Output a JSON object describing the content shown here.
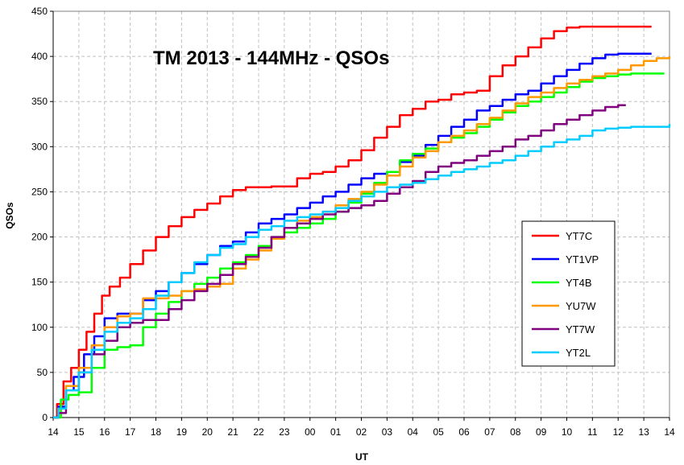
{
  "chart_data": {
    "type": "line",
    "title": "TM 2013 - 144MHz - QSOs",
    "xlabel": "UT",
    "ylabel": "QSOs",
    "ylim": [
      0,
      450
    ],
    "yticks": [
      "0",
      "50",
      "100",
      "150",
      "200",
      "250",
      "300",
      "350",
      "400",
      "450"
    ],
    "xlim": [
      0,
      24
    ],
    "xticks": [
      "14",
      "15",
      "16",
      "17",
      "18",
      "19",
      "20",
      "21",
      "22",
      "23",
      "00",
      "01",
      "02",
      "03",
      "04",
      "05",
      "06",
      "07",
      "08",
      "09",
      "10",
      "11",
      "12",
      "13",
      "14"
    ],
    "x_unit_note": "",
    "grid": true,
    "legend_position": "right",
    "series": [
      {
        "name": "YT7C",
        "color": "#ff0000",
        "x": [
          0,
          0.15,
          0.4,
          0.7,
          1.0,
          1.3,
          1.6,
          1.9,
          2.2,
          2.6,
          3.0,
          3.5,
          4.0,
          4.5,
          5.0,
          5.5,
          6.0,
          6.5,
          7.0,
          7.5,
          8.0,
          8.5,
          9.0,
          9.5,
          10.0,
          10.5,
          11.0,
          11.5,
          12.0,
          12.5,
          13.0,
          13.5,
          14.0,
          14.5,
          15.0,
          15.5,
          16.0,
          16.5,
          17.0,
          17.5,
          18.0,
          18.5,
          19.0,
          19.5,
          20.0,
          20.5,
          21.0,
          21.5,
          22.0,
          22.5,
          23.0,
          23.3
        ],
        "y": [
          0,
          15,
          40,
          55,
          75,
          95,
          115,
          135,
          145,
          155,
          170,
          185,
          200,
          212,
          222,
          230,
          237,
          245,
          252,
          255,
          255,
          256,
          256,
          265,
          270,
          272,
          278,
          285,
          296,
          310,
          322,
          335,
          342,
          350,
          352,
          358,
          360,
          362,
          378,
          390,
          400,
          410,
          420,
          428,
          432,
          433,
          433,
          433,
          433,
          433,
          433,
          433
        ]
      },
      {
        "name": "YT1VP",
        "color": "#0000ff",
        "x": [
          0,
          0.2,
          0.5,
          0.8,
          1.2,
          1.6,
          2.0,
          2.5,
          3.0,
          3.5,
          4.0,
          4.5,
          5.0,
          5.5,
          6.0,
          6.5,
          7.0,
          7.5,
          8.0,
          8.5,
          9.0,
          9.5,
          10.0,
          10.5,
          11.0,
          11.5,
          12.0,
          12.5,
          13.0,
          13.5,
          14.0,
          14.5,
          15.0,
          15.5,
          16.0,
          16.5,
          17.0,
          17.5,
          18.0,
          18.5,
          19.0,
          19.5,
          20.0,
          20.5,
          21.0,
          21.5,
          22.0,
          22.5,
          23.0,
          23.3
        ],
        "y": [
          0,
          12,
          30,
          45,
          70,
          90,
          110,
          115,
          115,
          130,
          140,
          150,
          160,
          170,
          180,
          190,
          195,
          205,
          215,
          220,
          225,
          232,
          238,
          245,
          250,
          258,
          265,
          270,
          272,
          283,
          290,
          302,
          312,
          322,
          330,
          340,
          345,
          352,
          358,
          362,
          370,
          378,
          385,
          392,
          398,
          402,
          403,
          403,
          403,
          403
        ]
      },
      {
        "name": "YT4B",
        "color": "#00ff00",
        "x": [
          0,
          0.3,
          0.6,
          1.0,
          1.5,
          2.0,
          2.5,
          3.0,
          3.5,
          4.0,
          4.5,
          5.0,
          5.5,
          6.0,
          6.5,
          7.0,
          7.5,
          8.0,
          8.5,
          9.0,
          9.5,
          10.0,
          10.5,
          11.0,
          11.5,
          12.0,
          12.5,
          13.0,
          13.5,
          14.0,
          14.5,
          15.0,
          15.5,
          16.0,
          16.5,
          17.0,
          17.5,
          18.0,
          18.5,
          19.0,
          19.5,
          20.0,
          20.5,
          21.0,
          21.5,
          22.0,
          22.5,
          23.0,
          23.5,
          23.8
        ],
        "y": [
          0,
          20,
          25,
          28,
          55,
          75,
          78,
          80,
          100,
          115,
          128,
          140,
          148,
          155,
          165,
          172,
          180,
          190,
          200,
          205,
          210,
          215,
          220,
          228,
          238,
          248,
          260,
          272,
          285,
          292,
          298,
          305,
          310,
          315,
          322,
          330,
          338,
          345,
          350,
          355,
          360,
          366,
          372,
          376,
          378,
          380,
          381,
          381,
          381,
          381
        ]
      },
      {
        "name": "YU7W",
        "color": "#ff9900",
        "x": [
          0,
          0.2,
          0.5,
          1.0,
          1.5,
          2.0,
          2.5,
          3.0,
          3.5,
          4.0,
          4.5,
          5.0,
          5.5,
          6.0,
          6.5,
          7.0,
          7.5,
          8.0,
          8.5,
          9.0,
          9.5,
          10.0,
          10.5,
          11.0,
          11.5,
          12.0,
          12.5,
          13.0,
          13.5,
          14.0,
          14.5,
          15.0,
          15.5,
          16.0,
          16.5,
          17.0,
          17.5,
          18.0,
          18.5,
          19.0,
          19.5,
          20.0,
          20.5,
          21.0,
          21.5,
          22.0,
          22.5,
          23.0,
          23.5,
          24.0
        ],
        "y": [
          0,
          10,
          35,
          55,
          80,
          100,
          112,
          115,
          132,
          132,
          135,
          140,
          142,
          145,
          148,
          165,
          175,
          185,
          198,
          210,
          218,
          222,
          228,
          235,
          242,
          250,
          258,
          268,
          278,
          288,
          295,
          305,
          312,
          318,
          325,
          332,
          340,
          348,
          355,
          360,
          365,
          370,
          374,
          378,
          381,
          385,
          390,
          395,
          398,
          400
        ]
      },
      {
        "name": "YT7W",
        "color": "#800080",
        "x": [
          0,
          0.2,
          0.5,
          1.0,
          1.5,
          2.0,
          2.5,
          3.0,
          3.5,
          4.0,
          4.5,
          5.0,
          5.5,
          6.0,
          6.5,
          7.0,
          7.5,
          8.0,
          8.5,
          9.0,
          9.5,
          10.0,
          10.5,
          11.0,
          11.5,
          12.0,
          12.5,
          13.0,
          13.5,
          14.0,
          14.5,
          15.0,
          15.5,
          16.0,
          16.5,
          17.0,
          17.5,
          18.0,
          18.5,
          19.0,
          19.5,
          20.0,
          20.5,
          21.0,
          21.5,
          22.0,
          22.3
        ],
        "y": [
          0,
          5,
          30,
          50,
          70,
          85,
          100,
          105,
          108,
          108,
          120,
          130,
          140,
          148,
          158,
          170,
          178,
          188,
          200,
          210,
          215,
          220,
          225,
          228,
          232,
          235,
          240,
          248,
          255,
          262,
          272,
          278,
          282,
          285,
          290,
          295,
          300,
          308,
          312,
          318,
          325,
          330,
          335,
          340,
          344,
          346,
          346
        ]
      },
      {
        "name": "YT2L",
        "color": "#00ccff",
        "x": [
          0,
          0.2,
          0.5,
          1.0,
          1.5,
          2.0,
          2.5,
          3.0,
          3.5,
          4.0,
          4.5,
          5.0,
          5.5,
          6.0,
          6.5,
          7.0,
          7.5,
          8.0,
          8.5,
          9.0,
          9.5,
          10.0,
          10.5,
          11.0,
          11.5,
          12.0,
          12.5,
          13.0,
          13.5,
          14.0,
          14.5,
          15.0,
          15.5,
          16.0,
          16.5,
          17.0,
          17.5,
          18.0,
          18.5,
          19.0,
          19.5,
          20.0,
          20.5,
          21.0,
          21.5,
          22.0,
          22.5,
          23.0,
          23.5,
          24.0
        ],
        "y": [
          0,
          10,
          30,
          50,
          75,
          95,
          105,
          110,
          120,
          135,
          150,
          160,
          172,
          180,
          188,
          192,
          200,
          208,
          212,
          218,
          222,
          225,
          228,
          232,
          240,
          245,
          250,
          255,
          258,
          260,
          264,
          268,
          272,
          275,
          278,
          282,
          285,
          290,
          295,
          300,
          305,
          308,
          312,
          318,
          320,
          321,
          322,
          322,
          322,
          325
        ]
      }
    ]
  }
}
